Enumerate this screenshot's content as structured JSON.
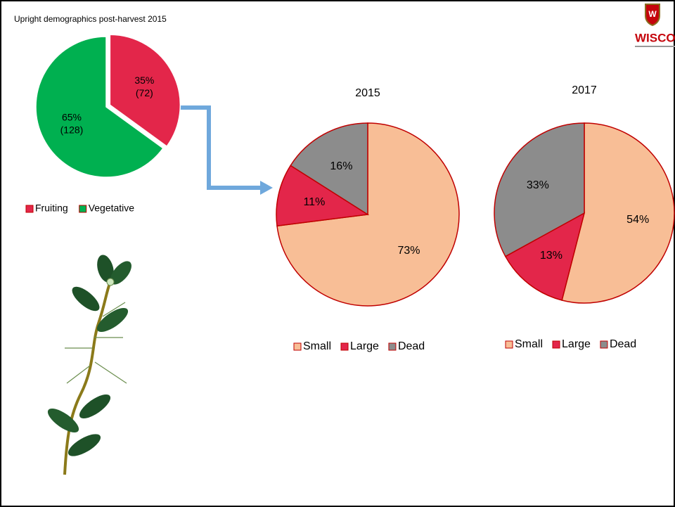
{
  "title": "Upright demographics post-harvest 2015",
  "logo": "WISCONSIN",
  "chart_data": [
    {
      "type": "pie",
      "categories": [
        "Fruiting",
        "Vegetative"
      ],
      "values": [
        35,
        65
      ],
      "value_labels": [
        "35%",
        "65%"
      ],
      "counts": [
        72,
        128
      ],
      "count_labels": [
        "(72)",
        "(128)"
      ],
      "colors": [
        "#e3264a",
        "#00b050"
      ],
      "legend": "bottom"
    },
    {
      "type": "pie",
      "title": "2015",
      "categories": [
        "Small",
        "Large",
        "Dead"
      ],
      "values": [
        73,
        11,
        16
      ],
      "value_labels": [
        "73%",
        "11%",
        "16%"
      ],
      "colors": [
        "#f8be96",
        "#e3264a",
        "#8c8c8c"
      ],
      "legend": "bottom"
    },
    {
      "type": "pie",
      "title": "2017",
      "categories": [
        "Small",
        "Large",
        "Dead"
      ],
      "values": [
        54,
        13,
        33
      ],
      "value_labels": [
        "54%",
        "13%",
        "33%"
      ],
      "colors": [
        "#f8be96",
        "#e3264a",
        "#8c8c8c"
      ],
      "legend": "bottom"
    }
  ]
}
